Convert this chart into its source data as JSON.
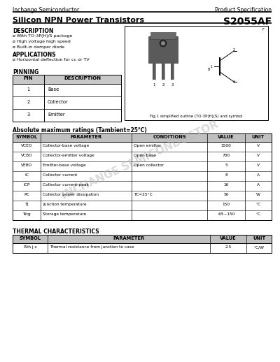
{
  "title_left": "Inchange Semiconductor",
  "title_right": "Product Specification",
  "product_name": "Silicon NPN Power Transistors",
  "part_number": "S2055AF",
  "description_title": "DESCRIPTION",
  "description_items": [
    "ø With TO-3P(H)/S package",
    "ø High voltage high speed",
    "ø Built-in damper diode"
  ],
  "applications_title": "APPLICATIONS",
  "applications_items": [
    "ø Horizontal deflection for cc or TV"
  ],
  "pinning_title": "PINNING",
  "pinning_headers": [
    "PIN",
    "DESCRIPTION"
  ],
  "pinning_rows": [
    [
      "1",
      "Base"
    ],
    [
      "2",
      "Collector"
    ],
    [
      "3",
      "Emitter"
    ]
  ],
  "fig_caption": "Fig.1 simplified outline (TO-3P(H)(S) and symbol",
  "abs_max_title": "Absolute maximum ratings (Tambient=25°C)",
  "abs_max_headers": [
    "SYMBOL",
    "PARAMETER",
    "CONDITIONS",
    "VALUE",
    "UNIT"
  ],
  "abs_max_rows": [
    [
      "VCEO",
      "Collector-base voltage",
      "Open emitter",
      "1500",
      "V"
    ],
    [
      "VCBO",
      "Collector-emitter voltage",
      "Open base",
      "700",
      "V"
    ],
    [
      "VEBO",
      "Emitter-base voltage",
      "Open collector",
      "5",
      "V"
    ],
    [
      "IC",
      "Collector current",
      "",
      "8",
      "A"
    ],
    [
      "ICP",
      "Collector current-peak",
      "",
      "16",
      "A"
    ],
    [
      "PC",
      "Collector power dissipation",
      "TC=25°C",
      "50",
      "W"
    ],
    [
      "TJ",
      "Junction temperature",
      "",
      "150",
      "°C"
    ],
    [
      "Tstg",
      "Storage temperature",
      "",
      "-65~150",
      "°C"
    ]
  ],
  "thermal_title": "THERMAL CHARACTERISTICS",
  "thermal_headers": [
    "SYMBOL",
    "PARAMETER",
    "VALUE",
    "UNIT"
  ],
  "thermal_rows": [
    [
      "Rth j-c",
      "Thermal resistance from junction to case",
      "2.5",
      "°C/W"
    ]
  ],
  "watermark": "INCHANGE SEMICONDUCTOR",
  "bg_color": "#ffffff"
}
